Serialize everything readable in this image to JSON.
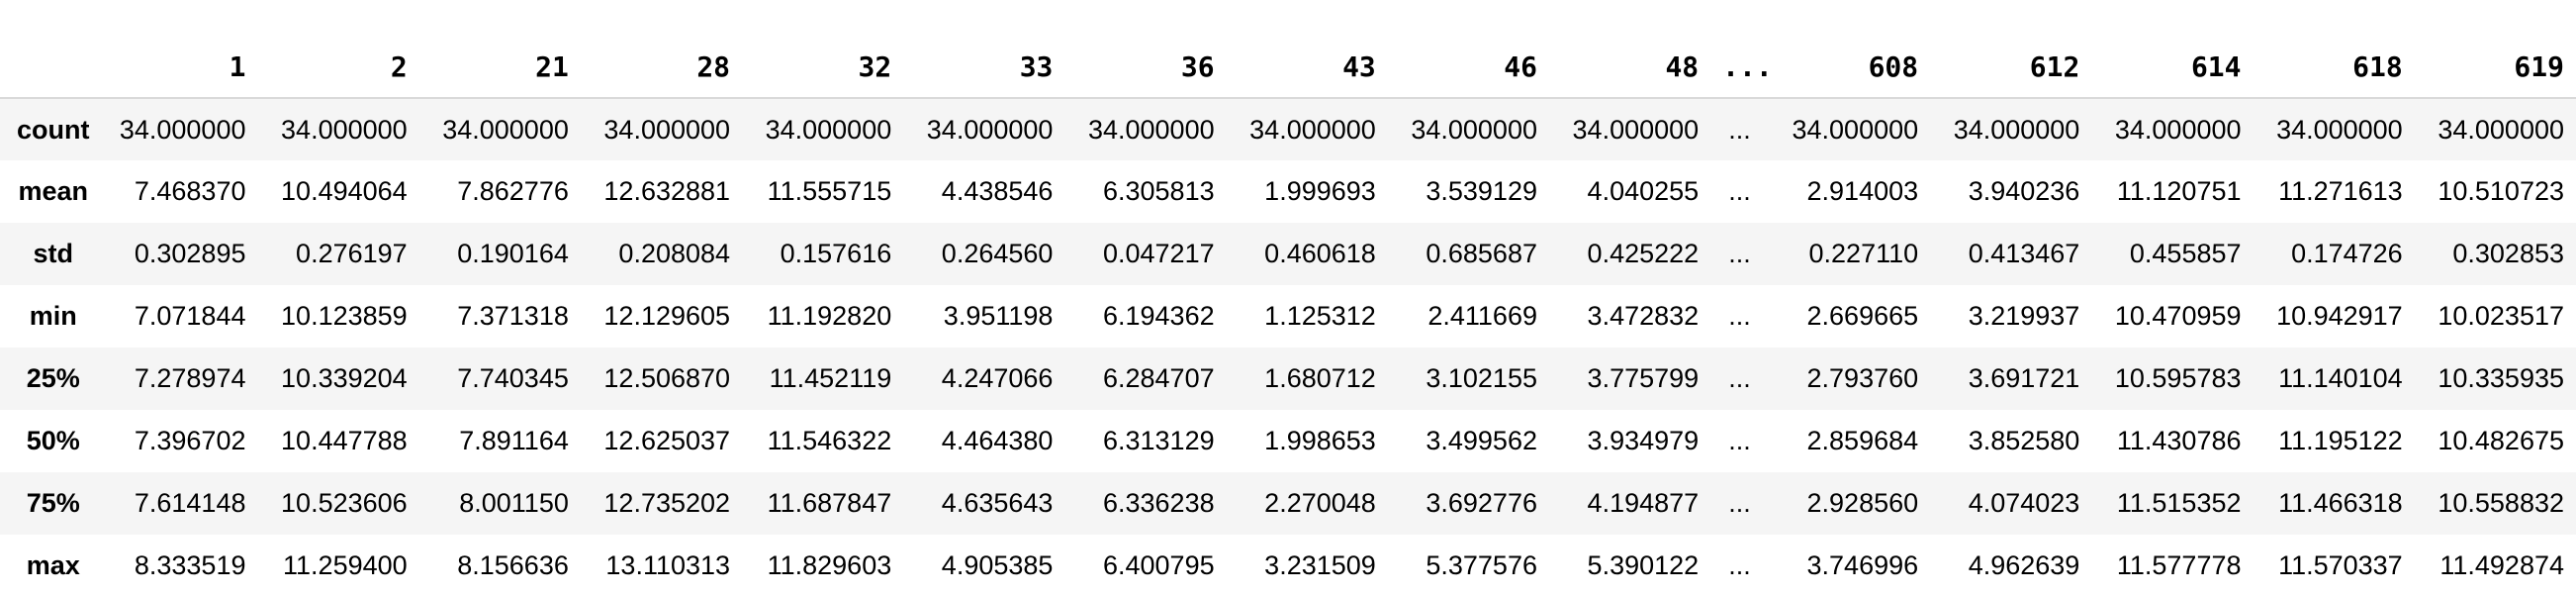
{
  "table": {
    "columns": [
      "1",
      "2",
      "21",
      "28",
      "32",
      "33",
      "36",
      "43",
      "46",
      "48",
      "...",
      "608",
      "612",
      "614",
      "618",
      "619"
    ],
    "rows": [
      {
        "label": "count",
        "values": [
          "34.000000",
          "34.000000",
          "34.000000",
          "34.000000",
          "34.000000",
          "34.000000",
          "34.000000",
          "34.000000",
          "34.000000",
          "34.000000",
          "...",
          "34.000000",
          "34.000000",
          "34.000000",
          "34.000000",
          "34.000000"
        ]
      },
      {
        "label": "mean",
        "values": [
          "7.468370",
          "10.494064",
          "7.862776",
          "12.632881",
          "11.555715",
          "4.438546",
          "6.305813",
          "1.999693",
          "3.539129",
          "4.040255",
          "...",
          "2.914003",
          "3.940236",
          "11.120751",
          "11.271613",
          "10.510723"
        ]
      },
      {
        "label": "std",
        "values": [
          "0.302895",
          "0.276197",
          "0.190164",
          "0.208084",
          "0.157616",
          "0.264560",
          "0.047217",
          "0.460618",
          "0.685687",
          "0.425222",
          "...",
          "0.227110",
          "0.413467",
          "0.455857",
          "0.174726",
          "0.302853"
        ]
      },
      {
        "label": "min",
        "values": [
          "7.071844",
          "10.123859",
          "7.371318",
          "12.129605",
          "11.192820",
          "3.951198",
          "6.194362",
          "1.125312",
          "2.411669",
          "3.472832",
          "...",
          "2.669665",
          "3.219937",
          "10.470959",
          "10.942917",
          "10.023517"
        ]
      },
      {
        "label": "25%",
        "values": [
          "7.278974",
          "10.339204",
          "7.740345",
          "12.506870",
          "11.452119",
          "4.247066",
          "6.284707",
          "1.680712",
          "3.102155",
          "3.775799",
          "...",
          "2.793760",
          "3.691721",
          "10.595783",
          "11.140104",
          "10.335935"
        ]
      },
      {
        "label": "50%",
        "values": [
          "7.396702",
          "10.447788",
          "7.891164",
          "12.625037",
          "11.546322",
          "4.464380",
          "6.313129",
          "1.998653",
          "3.499562",
          "3.934979",
          "...",
          "2.859684",
          "3.852580",
          "11.430786",
          "11.195122",
          "10.482675"
        ]
      },
      {
        "label": "75%",
        "values": [
          "7.614148",
          "10.523606",
          "8.001150",
          "12.735202",
          "11.687847",
          "4.635643",
          "6.336238",
          "2.270048",
          "3.692776",
          "4.194877",
          "...",
          "2.928560",
          "4.074023",
          "11.515352",
          "11.466318",
          "10.558832"
        ]
      },
      {
        "label": "max",
        "values": [
          "8.333519",
          "11.259400",
          "8.156636",
          "13.110313",
          "11.829603",
          "4.905385",
          "6.400795",
          "3.231509",
          "5.377576",
          "5.390122",
          "...",
          "3.746996",
          "4.962639",
          "11.577778",
          "11.570337",
          "11.492874"
        ]
      }
    ]
  },
  "colors": {
    "stripe": "#f5f5f5",
    "header_border": "#d9d9d9",
    "text": "#000000"
  }
}
